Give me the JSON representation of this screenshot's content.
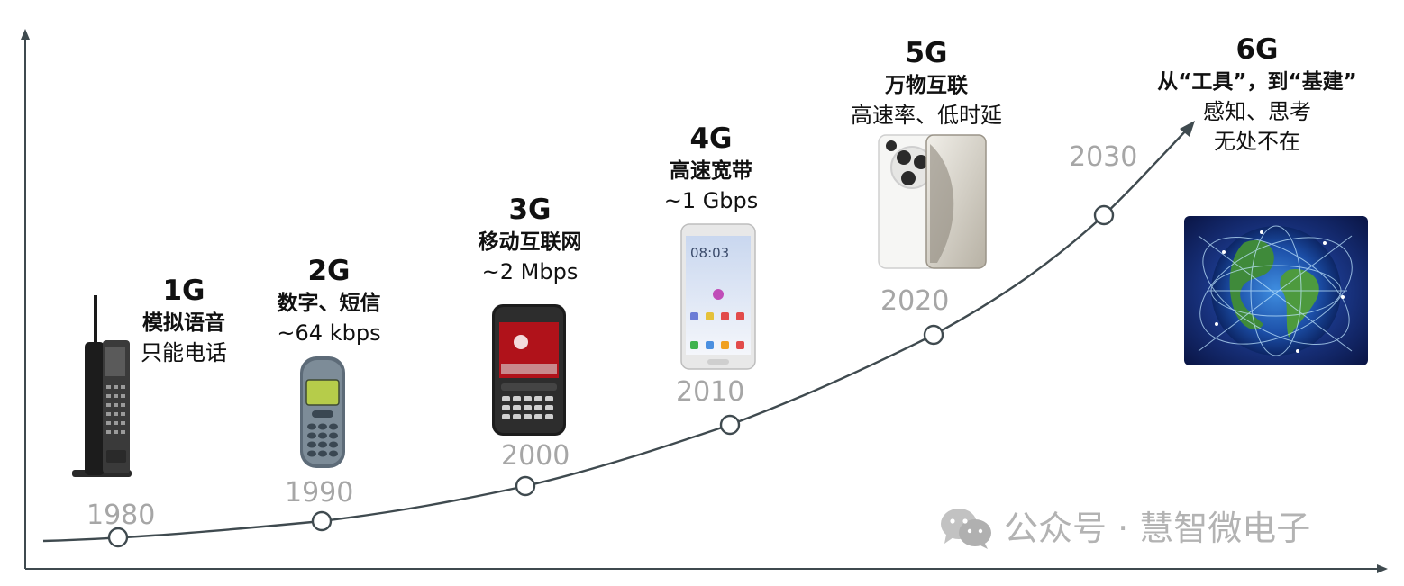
{
  "generations": [
    {
      "label": "1G",
      "tagline": "模拟语音",
      "detail": "只能电话",
      "year": "1980"
    },
    {
      "label": "2G",
      "tagline": "数字、短信",
      "detail": "~64 kbps",
      "year": "1990"
    },
    {
      "label": "3G",
      "tagline": "移动互联网",
      "detail": "~2 Mbps",
      "year": "2000"
    },
    {
      "label": "4G",
      "tagline": "高速宽带",
      "detail": "~1 Gbps",
      "year": "2010"
    },
    {
      "label": "5G",
      "tagline": "万物互联",
      "detail": "高速率、低时延",
      "year": "2020"
    },
    {
      "label": "6G",
      "tagline": "从“工具”，到“基建”",
      "detail": "感知、思考",
      "detail2": "无处不在",
      "year": "2030"
    }
  ],
  "device_icons": [
    "brick-phone-icon",
    "candybar-phone-icon",
    "blackberry-phone-icon",
    "touchscreen-phone-icon",
    "5g-smartphone-icon",
    "connected-globe-icon"
  ],
  "phone_screens": {
    "time_4g": "08:03"
  },
  "watermark": {
    "text": "公众号 · 慧智微电子",
    "icon": "wechat-icon"
  },
  "colors": {
    "curve": "#3f4a4f",
    "year": "#a6a6a6",
    "text": "#111111",
    "watermark": "#b3b3b3"
  }
}
